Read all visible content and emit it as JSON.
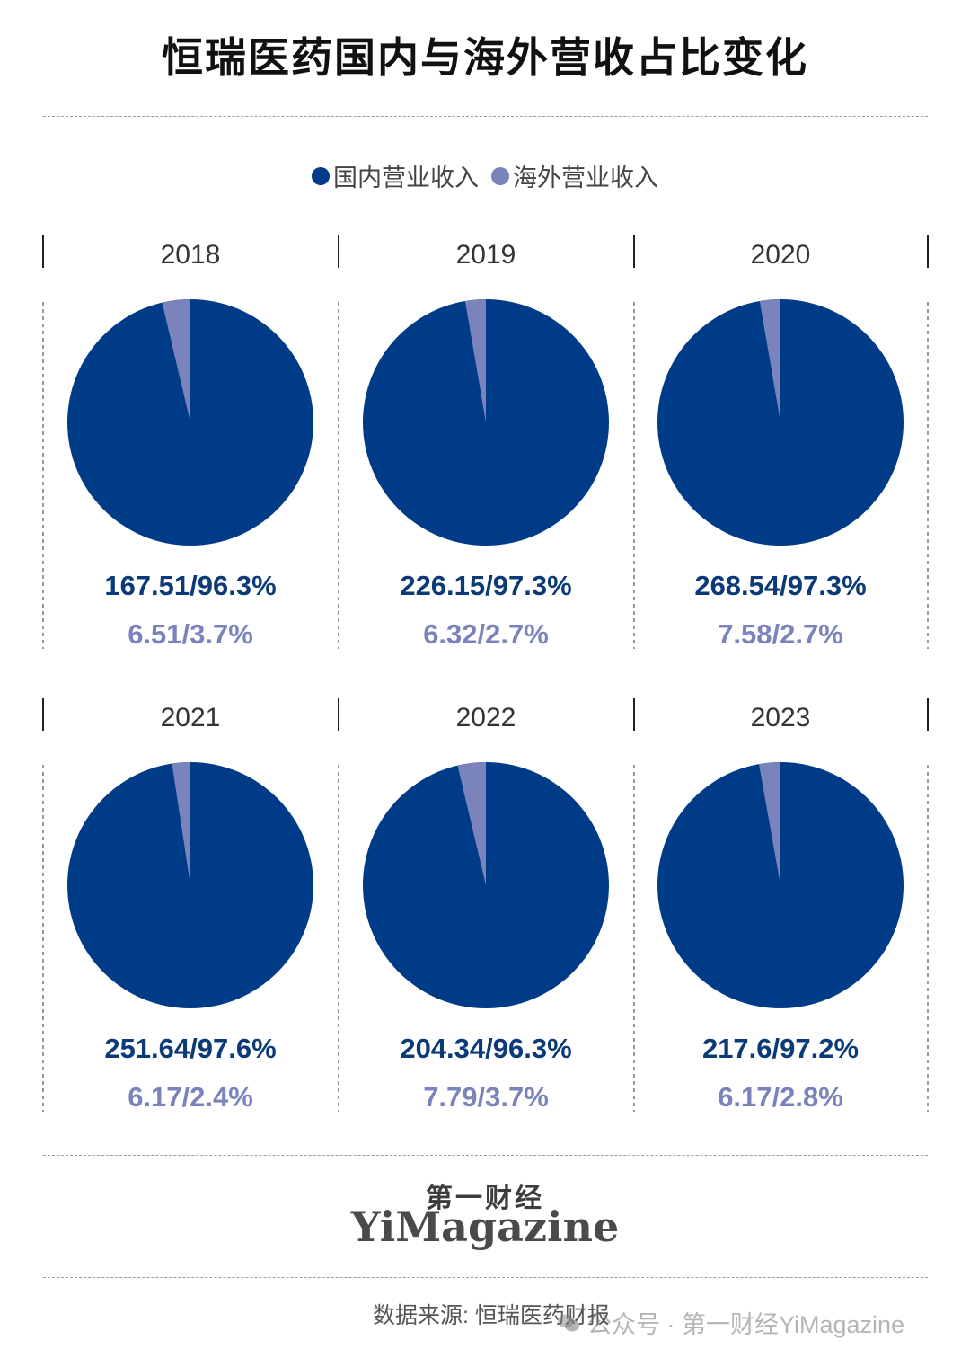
{
  "title": "恒瑞医药国内与海外营收占比变化",
  "legend": [
    {
      "label": "国内营业收入",
      "color": "#003B87"
    },
    {
      "label": "海外营业收入",
      "color": "#7B83BD"
    }
  ],
  "colors": {
    "domestic": "#003B87",
    "overseas": "#7B83BD"
  },
  "chart_data": {
    "type": "pie",
    "title": "恒瑞医药国内与海外营收占比变化",
    "series_names": [
      "国内营业收入",
      "海外营业收入"
    ],
    "panels": [
      {
        "year": "2018",
        "domestic_value": "167.51",
        "domestic_pct": 96.3,
        "overseas_value": "6.51",
        "overseas_pct": 3.7
      },
      {
        "year": "2019",
        "domestic_value": "226.15",
        "domestic_pct": 97.3,
        "overseas_value": "6.32",
        "overseas_pct": 2.7
      },
      {
        "year": "2020",
        "domestic_value": "268.54",
        "domestic_pct": 97.3,
        "overseas_value": "7.58",
        "overseas_pct": 2.7
      },
      {
        "year": "2021",
        "domestic_value": "251.64",
        "domestic_pct": 97.6,
        "overseas_value": "6.17",
        "overseas_pct": 2.4
      },
      {
        "year": "2022",
        "domestic_value": "204.34",
        "domestic_pct": 96.3,
        "overseas_value": "7.79",
        "overseas_pct": 3.7
      },
      {
        "year": "2023",
        "domestic_value": "217.6",
        "domestic_pct": 97.2,
        "overseas_value": "6.17",
        "overseas_pct": 2.8
      }
    ]
  },
  "brand": {
    "cn": "第一财经",
    "en": "YiMagazine"
  },
  "source": "数据来源: 恒瑞医药财报",
  "watermark": "公众号 · 第一财经YiMagazine"
}
